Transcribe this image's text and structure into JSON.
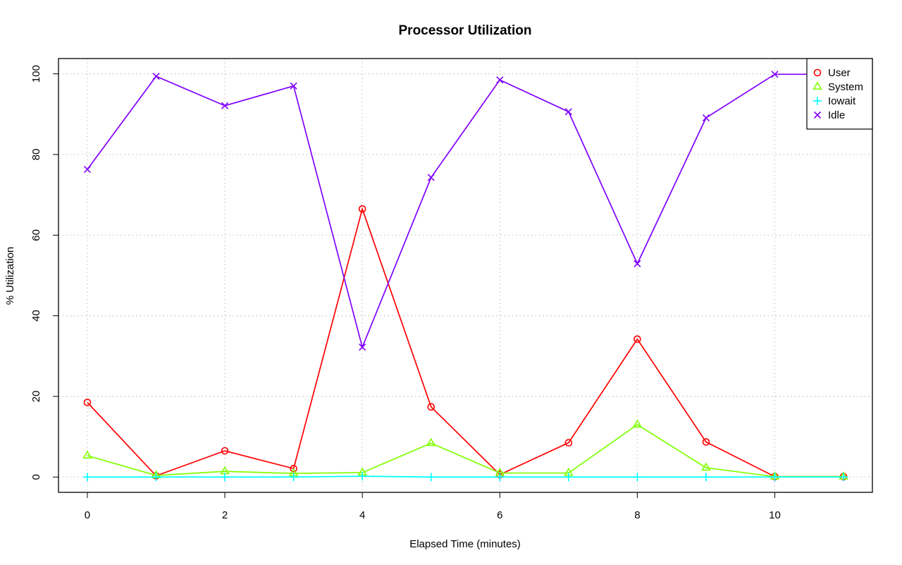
{
  "chart_data": {
    "type": "line",
    "title": "Processor Utilization",
    "xlabel": "Elapsed Time (minutes)",
    "ylabel": "% Utilization",
    "xlim": [
      -0.42,
      11.42
    ],
    "ylim": [
      -3.8,
      103.8
    ],
    "x_ticks": [
      0,
      2,
      4,
      6,
      8,
      10
    ],
    "y_ticks": [
      0,
      20,
      40,
      60,
      80,
      100
    ],
    "grid": true,
    "legend_position": "top-right",
    "x": [
      0,
      1,
      2,
      3,
      4,
      5,
      6,
      7,
      8,
      9,
      10,
      11
    ],
    "series": [
      {
        "name": "User",
        "color": "#ff0000",
        "marker": "circle",
        "values": [
          18.5,
          0.3,
          6.5,
          2.1,
          66.5,
          17.4,
          0.6,
          8.5,
          34.2,
          8.7,
          0.1,
          0.1
        ]
      },
      {
        "name": "System",
        "color": "#80ff00",
        "marker": "triangle",
        "values": [
          5.3,
          0.4,
          1.4,
          0.9,
          1.1,
          8.4,
          1.0,
          1.0,
          13.0,
          2.3,
          0.1,
          0.1
        ]
      },
      {
        "name": "Iowait",
        "color": "#00ffff",
        "marker": "plus",
        "values": [
          0.0,
          0.0,
          0.0,
          0.0,
          0.2,
          0.0,
          0.0,
          0.0,
          0.0,
          0.0,
          0.0,
          0.0
        ]
      },
      {
        "name": "Idle",
        "color": "#8000ff",
        "marker": "cross",
        "values": [
          76.3,
          99.4,
          92.1,
          97.0,
          32.2,
          74.3,
          98.5,
          90.6,
          52.9,
          89.1,
          99.9,
          99.9
        ]
      }
    ]
  }
}
